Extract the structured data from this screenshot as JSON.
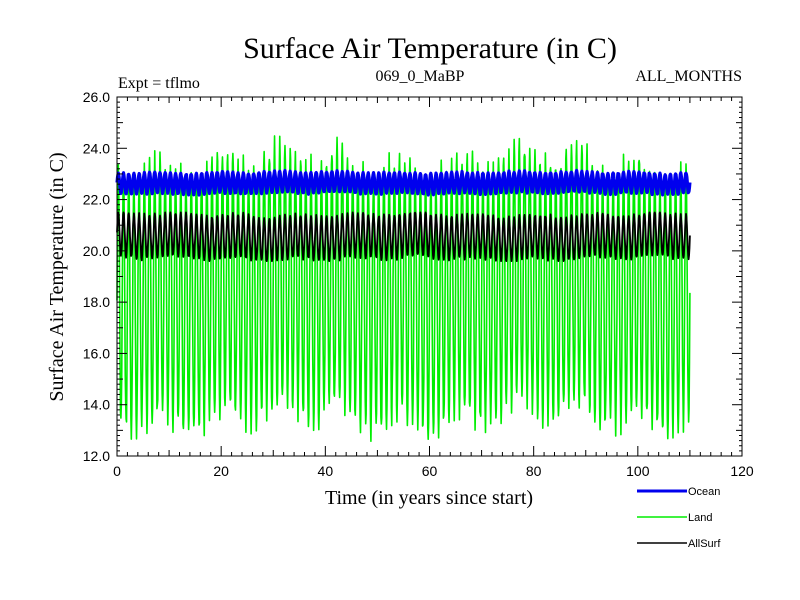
{
  "chart_data": {
    "type": "line",
    "title": "Surface Air Temperature (in C)",
    "subtitle_left": "Expt = tflmo",
    "subtitle_center": "069_0_MaBP",
    "subtitle_right": "ALL_MONTHS",
    "xlabel": "Time (in years since start)",
    "ylabel": "Surface Air Temperature (in C)",
    "xlim": [
      0,
      120
    ],
    "ylim": [
      12.0,
      26.0
    ],
    "x_ticks": [
      0,
      20,
      40,
      60,
      80,
      100,
      120
    ],
    "x_tick_labels": [
      "0",
      "20",
      "40",
      "60",
      "80",
      "100",
      "120"
    ],
    "y_ticks": [
      12,
      14,
      16,
      18,
      20,
      22,
      24,
      26
    ],
    "y_tick_labels": [
      "12.0",
      "14.0",
      "16.0",
      "18.0",
      "20.0",
      "22.0",
      "24.0",
      "26.0"
    ],
    "x_range_data": [
      0,
      110
    ],
    "samples_per_year": 12,
    "series": [
      {
        "name": "Land",
        "color": "#00ee00",
        "annual_mean": 18.5,
        "seasonal_amplitude": 5.0,
        "min": 12.2,
        "max": 24.8
      },
      {
        "name": "AllSurf",
        "color": "#000000",
        "annual_mean": 20.55,
        "seasonal_amplitude": 0.85,
        "min": 19.6,
        "max": 21.5
      },
      {
        "name": "Ocean",
        "color": "#0000ee",
        "annual_mean": 22.65,
        "seasonal_amplitude": 0.4,
        "min": 22.0,
        "max": 23.6
      }
    ],
    "legend": [
      {
        "label": "Ocean",
        "color": "#0000ee"
      },
      {
        "label": "Land",
        "color": "#00ee00"
      },
      {
        "label": "AllSurf",
        "color": "#000000"
      }
    ],
    "legend_position": "bottom-right"
  }
}
